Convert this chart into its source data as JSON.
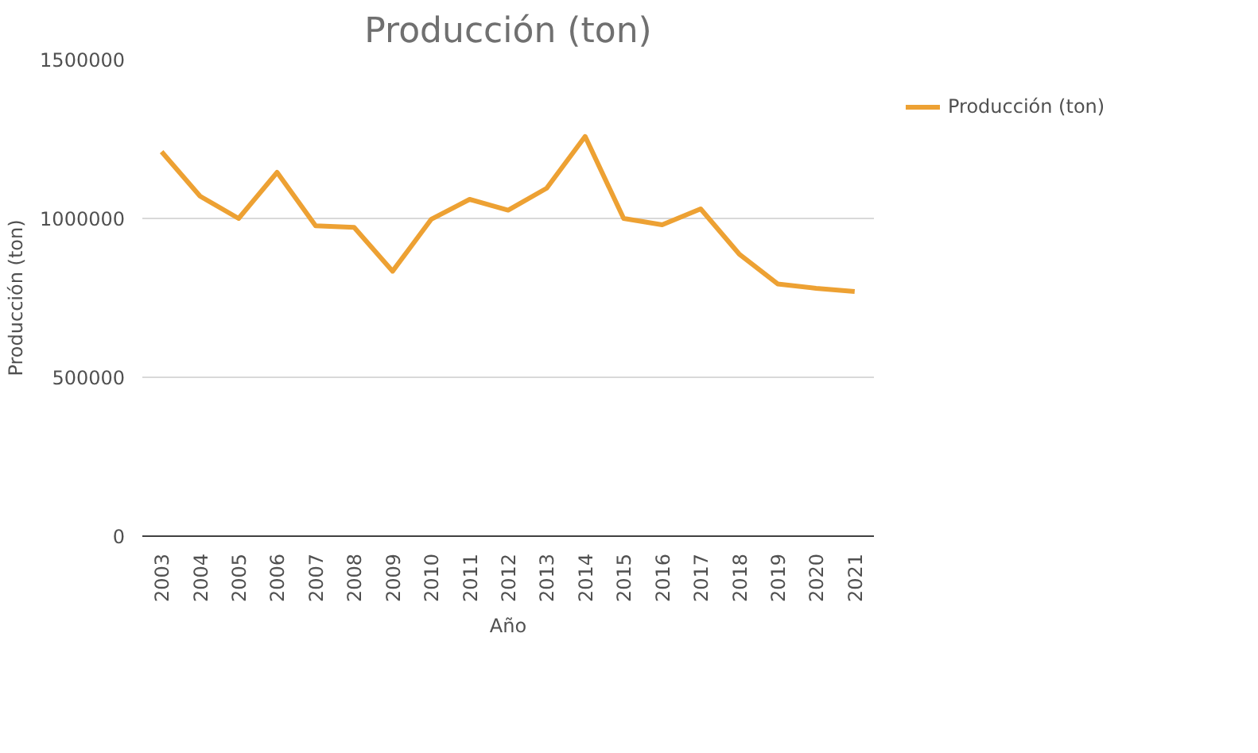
{
  "chart_data": {
    "type": "line",
    "title": "Producción (ton)",
    "xlabel": "Año",
    "ylabel": "Producción (ton)",
    "categories": [
      "2003",
      "2004",
      "2005",
      "2006",
      "2007",
      "2008",
      "2009",
      "2010",
      "2011",
      "2012",
      "2013",
      "2014",
      "2015",
      "2016",
      "2017",
      "2018",
      "2019",
      "2020",
      "2021"
    ],
    "series": [
      {
        "name": "Producción (ton)",
        "color": "#eda133",
        "values": [
          1210000,
          1070000,
          1000000,
          1145000,
          977000,
          972000,
          834000,
          997000,
          1060000,
          1026000,
          1095000,
          1258000,
          1000000,
          980000,
          1030000,
          888000,
          794000,
          780000,
          770000
        ]
      }
    ],
    "ylim": [
      0,
      1500000
    ],
    "yticks": [
      0,
      500000,
      1000000,
      1500000
    ],
    "grid": "y",
    "legend": "right",
    "marker": "none",
    "line_style": "solid"
  }
}
